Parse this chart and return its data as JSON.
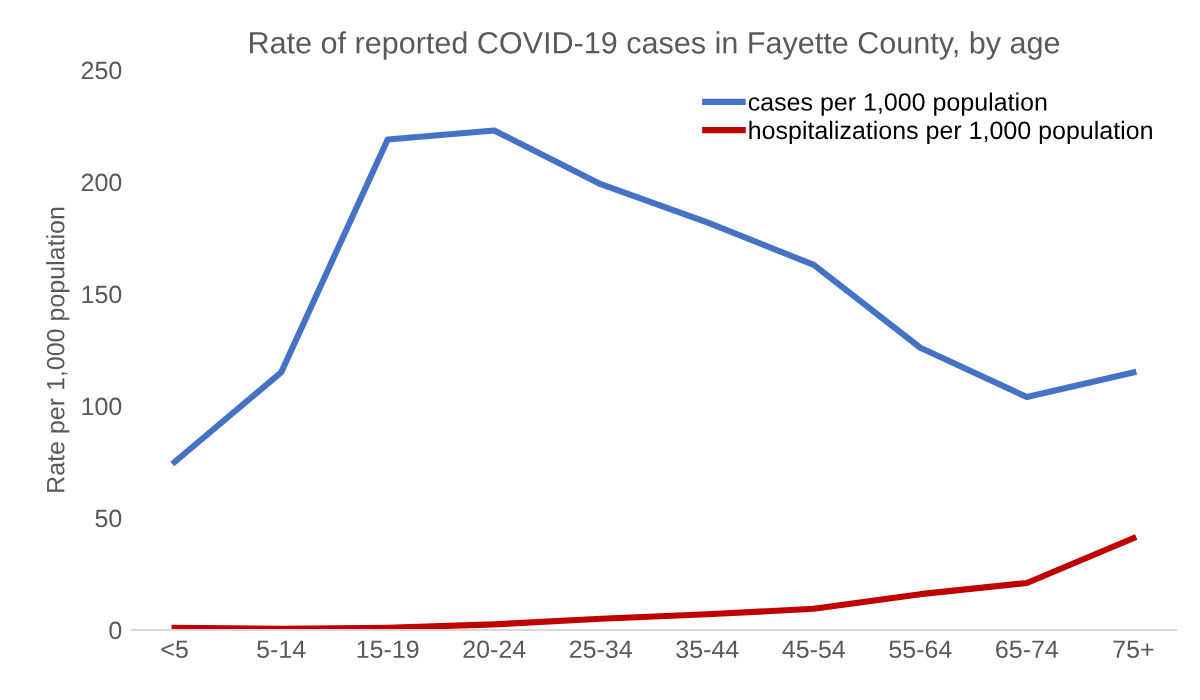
{
  "chart_data": {
    "type": "line",
    "title": "Rate of reported COVID-19 cases in Fayette County, by age",
    "ylabel": "Rate per 1,000 population",
    "categories": [
      "<5",
      "5-14",
      "15-19",
      "20-24",
      "25-34",
      "35-44",
      "45-54",
      "55-64",
      "65-74",
      "75+"
    ],
    "series": [
      {
        "name": "cases per 1,000 population",
        "color": "#4472c4",
        "values": [
          75,
          115,
          219,
          223,
          199,
          182,
          163,
          126,
          104,
          115
        ]
      },
      {
        "name": "hospitalizations per 1,000 population",
        "color": "#c00000",
        "values": [
          1,
          0.5,
          1,
          2.5,
          5,
          7,
          9.5,
          16,
          21,
          41
        ]
      }
    ],
    "ylim": [
      0,
      250
    ],
    "yticks": [
      0,
      50,
      100,
      150,
      200,
      250
    ],
    "grid": false,
    "legend": "top right",
    "marker": "none",
    "line_style": "solid"
  }
}
